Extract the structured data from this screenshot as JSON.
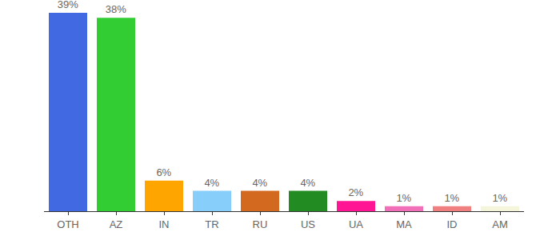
{
  "chart_data": {
    "type": "bar",
    "categories": [
      "OTH",
      "AZ",
      "IN",
      "TR",
      "RU",
      "US",
      "UA",
      "MA",
      "ID",
      "AM"
    ],
    "values": [
      39,
      38,
      6,
      4,
      4,
      4,
      2,
      1,
      1,
      1
    ],
    "value_labels": [
      "39%",
      "38%",
      "6%",
      "4%",
      "4%",
      "4%",
      "2%",
      "1%",
      "1%",
      "1%"
    ],
    "colors": [
      "#4169e1",
      "#32cd32",
      "#ffa500",
      "#87cefa",
      "#d2691e",
      "#228b22",
      "#ff1493",
      "#f06fb8",
      "#f08080",
      "#f5f5dc"
    ],
    "ylim": [
      0,
      39
    ],
    "data_labels": true,
    "tick_labels": "x",
    "grid": false
  }
}
